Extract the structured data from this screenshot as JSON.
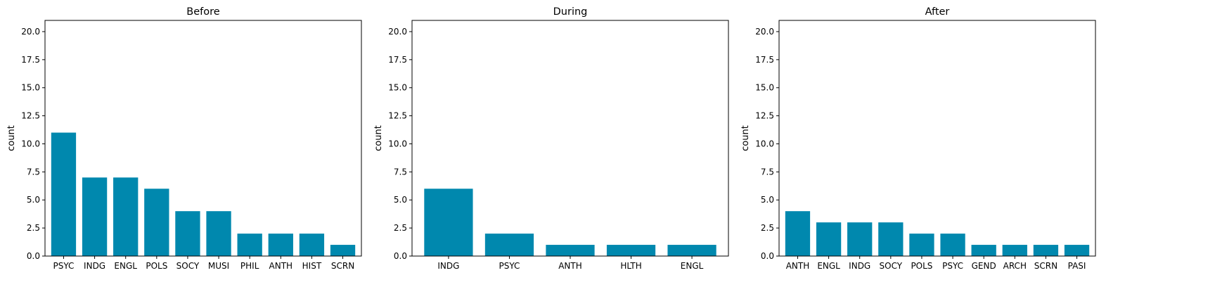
{
  "chart_data": [
    {
      "type": "bar",
      "title": "Before",
      "ylabel": "count",
      "xlabel": "",
      "ylim": [
        0,
        21
      ],
      "yticks": [
        "0.0",
        "2.5",
        "5.0",
        "7.5",
        "10.0",
        "12.5",
        "15.0",
        "17.5",
        "20.0"
      ],
      "categories": [
        "PSYC",
        "INDG",
        "ENGL",
        "POLS",
        "SOCY",
        "MUSI",
        "PHIL",
        "ANTH",
        "HIST",
        "SCRN"
      ],
      "values": [
        11,
        7,
        7,
        6,
        4,
        4,
        2,
        2,
        2,
        1
      ],
      "grid": false,
      "color": "#0088ae"
    },
    {
      "type": "bar",
      "title": "During",
      "ylabel": "count",
      "xlabel": "",
      "ylim": [
        0,
        21
      ],
      "yticks": [
        "0.0",
        "2.5",
        "5.0",
        "7.5",
        "10.0",
        "12.5",
        "15.0",
        "17.5",
        "20.0"
      ],
      "categories": [
        "INDG",
        "PSYC",
        "ANTH",
        "HLTH",
        "ENGL"
      ],
      "values": [
        6,
        2,
        1,
        1,
        1
      ],
      "grid": false,
      "color": "#0088ae"
    },
    {
      "type": "bar",
      "title": "After",
      "ylabel": "count",
      "xlabel": "",
      "ylim": [
        0,
        21
      ],
      "yticks": [
        "0.0",
        "2.5",
        "5.0",
        "7.5",
        "10.0",
        "12.5",
        "15.0",
        "17.5",
        "20.0"
      ],
      "categories": [
        "ANTH",
        "ENGL",
        "INDG",
        "SOCY",
        "POLS",
        "PSYC",
        "GEND",
        "ARCH",
        "SCRN",
        "PASI"
      ],
      "values": [
        4,
        3,
        3,
        3,
        2,
        2,
        1,
        1,
        1,
        1
      ],
      "grid": false,
      "color": "#0088ae"
    }
  ]
}
